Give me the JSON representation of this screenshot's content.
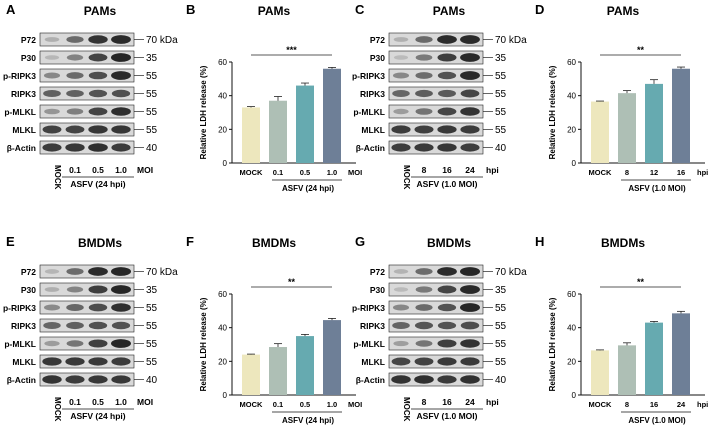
{
  "figure": {
    "title": "",
    "colors": {
      "mock": "#ede7bd",
      "c1": "#aebfb5",
      "c2": "#66aab0",
      "c3": "#6e7f97",
      "band": "#262626",
      "axis": "#111111"
    }
  },
  "blots": [
    {
      "letter": "A",
      "title": "PAMs",
      "rows": [
        "P72",
        "P30",
        "p-RIPK3",
        "RIPK3",
        "p-MLKL",
        "MLKL",
        "β-Actin"
      ],
      "kda": [
        "70 kDa",
        "35",
        "55",
        "55",
        "55",
        "55",
        "40"
      ],
      "lanes": [
        "MOCK",
        "0.1",
        "0.5",
        "1.0"
      ],
      "unit": "MOI",
      "caption": "ASFV (24 hpi)"
    },
    {
      "letter": "C",
      "title": "PAMs",
      "rows": [
        "P72",
        "P30",
        "p-RIPK3",
        "RIPK3",
        "p-MLKL",
        "MLKL",
        "β-Actin"
      ],
      "kda": [
        "70 kDa",
        "35",
        "55",
        "55",
        "55",
        "55",
        "40"
      ],
      "lanes": [
        "MOCK",
        "8",
        "16",
        "24"
      ],
      "unit": "hpi",
      "caption": "ASFV (1.0 MOI)"
    },
    {
      "letter": "E",
      "title": "BMDMs",
      "rows": [
        "P72",
        "P30",
        "p-RIPK3",
        "RIPK3",
        "p-MLKL",
        "MLKL",
        "β-Actin"
      ],
      "kda": [
        "70 kDa",
        "35",
        "55",
        "55",
        "55",
        "55",
        "40"
      ],
      "lanes": [
        "MOCK",
        "0.1",
        "0.5",
        "1.0"
      ],
      "unit": "MOI",
      "caption": "ASFV (24 hpi)"
    },
    {
      "letter": "G",
      "title": "BMDMs",
      "rows": [
        "P72",
        "P30",
        "p-RIPK3",
        "RIPK3",
        "p-MLKL",
        "MLKL",
        "β-Actin"
      ],
      "kda": [
        "70 kDa",
        "35",
        "55",
        "55",
        "55",
        "55",
        "40"
      ],
      "lanes": [
        "MOCK",
        "8",
        "16",
        "24"
      ],
      "unit": "hpi",
      "caption": "ASFV (1.0 MOI)"
    }
  ],
  "chart_data": [
    {
      "letter": "B",
      "type": "bar",
      "title": "PAMs",
      "ylabel": "Relative LDH release (%)",
      "categories": [
        "MOCK",
        "0.1",
        "0.5",
        "1.0"
      ],
      "unit": "MOI",
      "values": [
        33,
        37,
        46,
        56
      ],
      "errors": [
        0.5,
        2.5,
        1.5,
        0.8
      ],
      "ylim": [
        0,
        60
      ],
      "yticks": [
        "0",
        "20",
        "40",
        "60"
      ],
      "significance": "***",
      "caption": "ASFV (24 hpi)"
    },
    {
      "letter": "D",
      "type": "bar",
      "title": "PAMs",
      "ylabel": "Relative LDH release (%)",
      "categories": [
        "MOCK",
        "8",
        "12",
        "16"
      ],
      "unit": "hpi",
      "values": [
        36.5,
        41.5,
        47,
        56
      ],
      "errors": [
        0.3,
        1.5,
        2.5,
        1.0
      ],
      "ylim": [
        0,
        60
      ],
      "yticks": [
        "0",
        "20",
        "40",
        "60"
      ],
      "significance": "**",
      "caption": "ASFV (1.0 MOI)"
    },
    {
      "letter": "F",
      "type": "bar",
      "title": "BMDMs",
      "ylabel": "Relative LDH release (%)",
      "categories": [
        "MOCK",
        "0.1",
        "0.5",
        "1.0"
      ],
      "unit": "MOI",
      "values": [
        24,
        28.5,
        35,
        44.5
      ],
      "errors": [
        0.3,
        2.0,
        1.0,
        1.0
      ],
      "ylim": [
        0,
        60
      ],
      "yticks": [
        "0",
        "20",
        "40",
        "60"
      ],
      "significance": "**",
      "caption": "ASFV (24 hpi)"
    },
    {
      "letter": "H",
      "type": "bar",
      "title": "BMDMs",
      "ylabel": "Relative LDH release (%)",
      "categories": [
        "MOCK",
        "8",
        "16",
        "24"
      ],
      "unit": "hpi",
      "values": [
        26.5,
        29.5,
        43,
        48.5
      ],
      "errors": [
        0.3,
        1.5,
        0.7,
        1.2
      ],
      "ylim": [
        0,
        60
      ],
      "yticks": [
        "0",
        "20",
        "40",
        "60"
      ],
      "significance": "**",
      "caption": "ASFV (1.0 MOI)"
    }
  ]
}
